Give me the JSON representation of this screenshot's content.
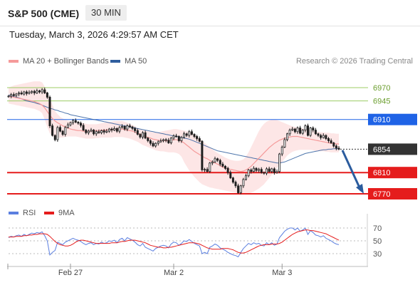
{
  "header": {
    "instrument": "S&P 500 (CME)",
    "timeframe": "30 MIN",
    "timestamp": "Tuesday, March 3, 2026 4:29:57 AM CET"
  },
  "legend": {
    "ma20_label": "MA 20 + Bollinger Bands",
    "ma50_label": "MA 50",
    "copyright": "Research © 2026 Trading Central"
  },
  "rsi_legend": {
    "rsi_label": "RSI",
    "ma_label": "9MA"
  },
  "colors": {
    "ma20": "#f59a9a",
    "ma50": "#2f5e9e",
    "bollinger_fill": "#fde2e2",
    "candle": "#1e1e1e",
    "support": "#e51c1c",
    "resistance_strong": "#1f63e6",
    "resistance_weak": "#9ccc65",
    "arrow": "#2b5c9e",
    "rsi": "#5b7fe0",
    "rsi_ma": "#e51c1c"
  },
  "chart_data": [
    {
      "type": "candlestick",
      "title": "S&P 500 (CME) 30 MIN",
      "x_tick_labels": [
        "Feb 27",
        "Mar 2",
        "Mar 3"
      ],
      "ylim": [
        6755,
        6990
      ],
      "last_price": 6854,
      "key_levels": [
        {
          "value": 6970,
          "label": "6970",
          "kind": "resistance_weak"
        },
        {
          "value": 6945,
          "label": "6945",
          "kind": "resistance_weak"
        },
        {
          "value": 6910,
          "label": "6910",
          "kind": "resistance"
        },
        {
          "value": 6854,
          "label": "6854",
          "kind": "last"
        },
        {
          "value": 6810,
          "label": "6810",
          "kind": "support"
        },
        {
          "value": 6770,
          "label": "6770",
          "kind": "support"
        }
      ],
      "close": [
        6954,
        6957,
        6955,
        6958,
        6960,
        6958,
        6962,
        6959,
        6961,
        6963,
        6960,
        6964,
        6962,
        6966,
        6960,
        6952,
        6898,
        6880,
        6872,
        6895,
        6888,
        6882,
        6895,
        6900,
        6904,
        6908,
        6905,
        6903,
        6899,
        6890,
        6885,
        6888,
        6890,
        6883,
        6887,
        6885,
        6889,
        6886,
        6888,
        6892,
        6890,
        6893,
        6888,
        6895,
        6897,
        6892,
        6898,
        6896,
        6893,
        6889,
        6882,
        6877,
        6885,
        6875,
        6870,
        6865,
        6860,
        6865,
        6868,
        6870,
        6872,
        6871,
        6866,
        6875,
        6879,
        6878,
        6870,
        6876,
        6883,
        6880,
        6887,
        6882,
        6878,
        6874,
        6869,
        6815,
        6816,
        6812,
        6828,
        6830,
        6836,
        6833,
        6826,
        6822,
        6818,
        6810,
        6800,
        6792,
        6785,
        6772,
        6785,
        6797,
        6804,
        6815,
        6812,
        6818,
        6814,
        6816,
        6810,
        6809,
        6817,
        6812,
        6817,
        6810,
        6812,
        6845,
        6858,
        6872,
        6883,
        6890,
        6892,
        6887,
        6894,
        6884,
        6890,
        6898,
        6880,
        6894,
        6890,
        6883,
        6880,
        6876,
        6880,
        6874,
        6870,
        6866,
        6860,
        6856,
        6854
      ],
      "open_close_note": "close-to-close candles",
      "ma50": [
        6956,
        6955,
        6953,
        6952,
        6951,
        6949,
        6947,
        6945,
        6944,
        6943,
        6942,
        6940,
        6939,
        6937,
        6935,
        6933,
        6931,
        6930,
        6928,
        6927,
        6925,
        6924,
        6922,
        6921,
        6919,
        6918,
        6917,
        6916,
        6915,
        6914,
        6913,
        6912,
        6911,
        6910,
        6909,
        6908,
        6907,
        6906,
        6905,
        6904,
        6903,
        6902,
        6901,
        6900,
        6899,
        6898,
        6897,
        6896,
        6895,
        6894,
        6893,
        6892,
        6891,
        6890,
        6889,
        6888,
        6887,
        6886,
        6885,
        6884,
        6883,
        6882,
        6881,
        6880,
        6879,
        6878,
        6877,
        6876,
        6875,
        6874,
        6873,
        6871,
        6869,
        6867,
        6865,
        6863,
        6861,
        6859,
        6857,
        6855,
        6853,
        6851,
        6850,
        6849,
        6848,
        6847,
        6846,
        6845,
        6844,
        6843,
        6842,
        6841,
        6840,
        6839,
        6838,
        6837,
        6836,
        6835,
        6834,
        6833,
        6832,
        6831,
        6830,
        6829,
        6828,
        6828,
        6829,
        6830,
        6832,
        6834,
        6836,
        6838,
        6840,
        6842,
        6844,
        6846,
        6847,
        6848,
        6849,
        6850,
        6851,
        6852,
        6853,
        6853,
        6854,
        6854,
        6855,
        6855,
        6855
      ],
      "ma20": [
        6954,
        6953,
        6952,
        6951,
        6950,
        6949,
        6948,
        6947,
        6946,
        6945,
        6944,
        6942,
        6940,
        6937,
        6932,
        6925,
        6918,
        6912,
        6907,
        6904,
        6901,
        6898,
        6896,
        6894,
        6892,
        6891,
        6890,
        6889,
        6889,
        6888,
        6888,
        6888,
        6888,
        6889,
        6889,
        6889,
        6890,
        6890,
        6890,
        6891,
        6891,
        6892,
        6892,
        6892,
        6892,
        6891,
        6890,
        6889,
        6888,
        6886,
        6884,
        6882,
        6880,
        6878,
        6876,
        6875,
        6873,
        6872,
        6871,
        6870,
        6870,
        6870,
        6870,
        6871,
        6872,
        6872,
        6871,
        6869,
        6866,
        6862,
        6858,
        6854,
        6850,
        6847,
        6844,
        6841,
        6838,
        6836,
        6833,
        6830,
        6828,
        6826,
        6823,
        6820,
        6818,
        6817,
        6816,
        6815,
        6814,
        6813,
        6812,
        6813,
        6815,
        6818,
        6822,
        6827,
        6832,
        6837,
        6842,
        6847,
        6852,
        6857,
        6861,
        6865,
        6868,
        6871,
        6873,
        6875,
        6876,
        6877,
        6878,
        6878,
        6878,
        6877,
        6876,
        6875,
        6874,
        6873,
        6872,
        6871,
        6870,
        6869,
        6868,
        6867,
        6866,
        6865,
        6865,
        6864,
        6864
      ],
      "bollinger_upper": [
        6970,
        6972,
        6974,
        6975,
        6976,
        6977,
        6978,
        6979,
        6980,
        6981,
        6982,
        6982,
        6982,
        6980,
        6972,
        6962,
        6950,
        6938,
        6926,
        6920,
        6915,
        6912,
        6910,
        6908,
        6907,
        6906,
        6905,
        6904,
        6904,
        6903,
        6902,
        6901,
        6901,
        6901,
        6901,
        6902,
        6903,
        6904,
        6905,
        6906,
        6906,
        6907,
        6907,
        6907,
        6907,
        6906,
        6904,
        6902,
        6900,
        6897,
        6894,
        6892,
        6890,
        6889,
        6888,
        6887,
        6886,
        6886,
        6886,
        6887,
        6888,
        6889,
        6890,
        6891,
        6892,
        6892,
        6891,
        6890,
        6889,
        6888,
        6887,
        6885,
        6882,
        6878,
        6874,
        6870,
        6866,
        6862,
        6858,
        6854,
        6850,
        6847,
        6844,
        6841,
        6838,
        6836,
        6834,
        6833,
        6832,
        6832,
        6833,
        6835,
        6840,
        6848,
        6858,
        6868,
        6878,
        6888,
        6896,
        6902,
        6906,
        6908,
        6910,
        6910,
        6909,
        6907,
        6905,
        6903,
        6901,
        6899,
        6897,
        6896,
        6895,
        6894,
        6893,
        6892,
        6891,
        6890,
        6889,
        6888,
        6887,
        6886,
        6886,
        6885,
        6885,
        6884,
        6884,
        6883,
        6883
      ],
      "bollinger_lower": [
        6940,
        6939,
        6938,
        6937,
        6936,
        6935,
        6934,
        6933,
        6932,
        6931,
        6930,
        6928,
        6926,
        6922,
        6910,
        6896,
        6884,
        6878,
        6876,
        6875,
        6876,
        6876,
        6877,
        6878,
        6878,
        6878,
        6878,
        6877,
        6876,
        6875,
        6874,
        6874,
        6874,
        6874,
        6875,
        6875,
        6876,
        6876,
        6876,
        6876,
        6876,
        6877,
        6877,
        6877,
        6877,
        6876,
        6875,
        6874,
        6872,
        6870,
        6868,
        6865,
        6862,
        6860,
        6858,
        6856,
        6854,
        6852,
        6851,
        6850,
        6850,
        6849,
        6848,
        6848,
        6848,
        6847,
        6845,
        6840,
        6830,
        6822,
        6814,
        6808,
        6802,
        6797,
        6792,
        6788,
        6786,
        6784,
        6782,
        6781,
        6780,
        6779,
        6778,
        6777,
        6776,
        6775,
        6774,
        6773,
        6772,
        6771,
        6770,
        6769,
        6769,
        6770,
        6772,
        6774,
        6777,
        6780,
        6784,
        6788,
        6794,
        6800,
        6806,
        6812,
        6818,
        6824,
        6830,
        6836,
        6842,
        6846,
        6849,
        6851,
        6852,
        6853,
        6853,
        6853,
        6853,
        6853,
        6852,
        6851,
        6851,
        6850,
        6850,
        6849,
        6849,
        6848,
        6848,
        6848,
        6848
      ]
    },
    {
      "type": "line",
      "title": "RSI",
      "ylim": [
        20,
        80
      ],
      "y_tick_labels": [
        "70",
        "50",
        "30"
      ],
      "series": [
        {
          "name": "RSI",
          "values": [
            55,
            57,
            56,
            58,
            59,
            57,
            60,
            58,
            60,
            62,
            61,
            63,
            62,
            64,
            58,
            50,
            28,
            32,
            35,
            48,
            46,
            44,
            48,
            50,
            52,
            54,
            52,
            51,
            49,
            46,
            44,
            46,
            47,
            44,
            46,
            45,
            48,
            46,
            47,
            50,
            49,
            51,
            47,
            52,
            54,
            50,
            55,
            53,
            51,
            48,
            44,
            42,
            46,
            40,
            38,
            36,
            34,
            38,
            40,
            42,
            43,
            42,
            39,
            45,
            48,
            47,
            43,
            46,
            50,
            49,
            52,
            49,
            46,
            44,
            42,
            30,
            32,
            30,
            40,
            42,
            45,
            43,
            39,
            37,
            35,
            32,
            30,
            28,
            27,
            25,
            32,
            38,
            42,
            46,
            44,
            47,
            45,
            46,
            43,
            42,
            47,
            44,
            47,
            43,
            45,
            55,
            60,
            65,
            68,
            70,
            70,
            67,
            70,
            65,
            67,
            70,
            60,
            66,
            63,
            59,
            58,
            56,
            58,
            54,
            52,
            50,
            47,
            45,
            44
          ]
        },
        {
          "name": "9MA",
          "values": [
            56,
            56,
            56,
            57,
            57,
            57,
            58,
            58,
            59,
            59,
            60,
            60,
            61,
            61,
            61,
            60,
            57,
            53,
            49,
            46,
            44,
            43,
            42,
            42,
            43,
            45,
            48,
            50,
            51,
            51,
            50,
            49,
            48,
            47,
            46,
            46,
            46,
            46,
            46,
            46,
            47,
            47,
            47,
            48,
            49,
            49,
            50,
            51,
            51,
            51,
            50,
            49,
            48,
            47,
            45,
            43,
            42,
            41,
            40,
            40,
            39,
            39,
            40,
            40,
            41,
            42,
            43,
            44,
            45,
            46,
            47,
            47,
            47,
            46,
            45,
            43,
            41,
            39,
            38,
            37,
            37,
            37,
            37,
            38,
            38,
            38,
            37,
            36,
            34,
            32,
            31,
            31,
            32,
            34,
            36,
            38,
            40,
            42,
            43,
            44,
            44,
            44,
            45,
            45,
            45,
            46,
            48,
            51,
            54,
            57,
            60,
            62,
            64,
            65,
            66,
            67,
            67,
            66,
            66,
            65,
            64,
            63,
            62,
            61,
            59,
            57,
            55,
            53,
            51
          ]
        }
      ]
    }
  ]
}
